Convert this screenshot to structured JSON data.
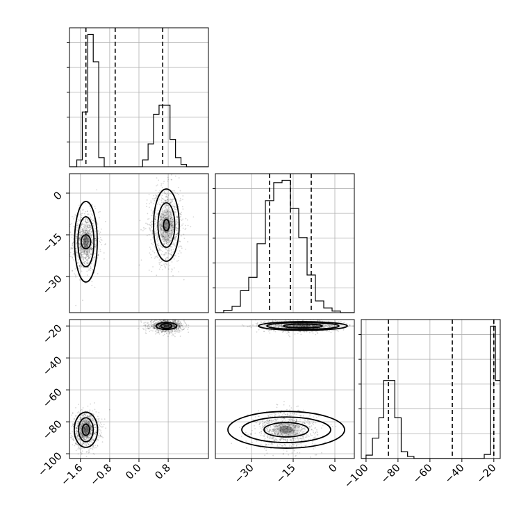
{
  "chart_data": {
    "type": "corner",
    "parameters": [
      {
        "range": [
          -1.9,
          1.9
        ],
        "ticks": [
          -1.6,
          -0.8,
          0.0,
          0.8
        ],
        "tick_labels": [
          "−1.6",
          "−0.8",
          "0.0",
          "0.8"
        ],
        "quantiles": [
          -1.45,
          -0.65,
          0.65
        ],
        "hist": {
          "edges": [
            -1.9,
            -1.7,
            -1.55,
            -1.4,
            -1.25,
            -1.1,
            -0.95,
            -0.8,
            -0.65,
            -0.5,
            -0.35,
            -0.2,
            -0.05,
            0.1,
            0.25,
            0.4,
            0.55,
            0.7,
            0.85,
            1.0,
            1.15,
            1.3,
            1.45,
            1.6,
            1.75,
            1.9
          ],
          "counts": [
            0,
            1.5,
            12,
            29,
            23,
            2,
            0,
            0,
            0,
            0,
            0,
            0,
            0,
            1.5,
            5,
            11.5,
            13.5,
            13.5,
            6,
            2,
            0.5,
            0,
            0,
            0,
            0
          ]
        }
      },
      {
        "range": [
          -43,
          7
        ],
        "ticks": [
          -30,
          -15,
          0
        ],
        "tick_labels": [
          "−30",
          "−15",
          "0"
        ],
        "quantiles": [
          -23.5,
          -16,
          -8.5
        ],
        "hist": {
          "edges": [
            -43,
            -40,
            -37,
            -34,
            -31,
            -28,
            -25,
            -22,
            -19,
            -16,
            -13,
            -10,
            -7,
            -4,
            -1,
            2,
            5,
            7
          ],
          "counts": [
            0,
            0.3,
            0.8,
            2.8,
            4.5,
            8.8,
            14.3,
            16.6,
            16.9,
            13.3,
            9.6,
            4.8,
            1.5,
            0.6,
            0.2,
            0,
            0
          ]
        }
      },
      {
        "range": [
          -103,
          -16
        ],
        "ticks": [
          -100,
          -80,
          -60,
          -40,
          -20
        ],
        "tick_labels": [
          "−100",
          "−80",
          "−60",
          "−40",
          "−20"
        ],
        "quantiles": [
          -86,
          -46,
          -20
        ],
        "hist": {
          "edges": [
            -103,
            -100,
            -96,
            -92,
            -89,
            -86,
            -82,
            -78,
            -74,
            -70,
            -66,
            -62,
            -26,
            -22,
            -19,
            -16
          ],
          "counts": [
            0,
            0.5,
            3,
            6,
            11.5,
            11.5,
            6,
            1,
            0.3,
            0,
            0,
            0,
            0.6,
            19.5,
            11.5
          ]
        }
      }
    ],
    "clusters": [
      {
        "x": -1.45,
        "sx": 0.17,
        "y": -17.5,
        "sy": 5.2,
        "z": -85,
        "sz": 5.5
      },
      {
        "x": 0.75,
        "sx": 0.22,
        "y": -11.5,
        "sy": 6.5,
        "z": -20,
        "sz": 1.8
      }
    ],
    "contour_levels": [
      {
        "pair": "x-y",
        "cluster": 0,
        "rings": [
          [
            0.13,
            2.5
          ],
          [
            0.22,
            9.0
          ],
          [
            0.31,
            14.5
          ]
        ]
      },
      {
        "pair": "x-y",
        "cluster": 1,
        "rings": [
          [
            0.08,
            2.0
          ],
          [
            0.23,
            8.0
          ],
          [
            0.35,
            13.0
          ]
        ]
      },
      {
        "pair": "x-z",
        "cluster": 0,
        "rings": [
          [
            0.1,
            3.5
          ],
          [
            0.2,
            7.5
          ],
          [
            0.32,
            11.0
          ]
        ]
      },
      {
        "pair": "x-z",
        "cluster": 1,
        "rings": [
          [
            0.15,
            1.5
          ],
          [
            0.28,
            2.2
          ]
        ]
      },
      {
        "pair": "y-z",
        "cluster": 0,
        "rings": [
          [
            8,
            4.5
          ],
          [
            16,
            8.0
          ],
          [
            21,
            11.5
          ]
        ]
      },
      {
        "pair": "y-z",
        "cluster": 1,
        "rings": [
          [
            7,
            1.2
          ],
          [
            13,
            2.1
          ],
          [
            16,
            2.7
          ]
        ]
      }
    ],
    "grid": true,
    "xlabel": "",
    "ylabel": "",
    "title": ""
  }
}
